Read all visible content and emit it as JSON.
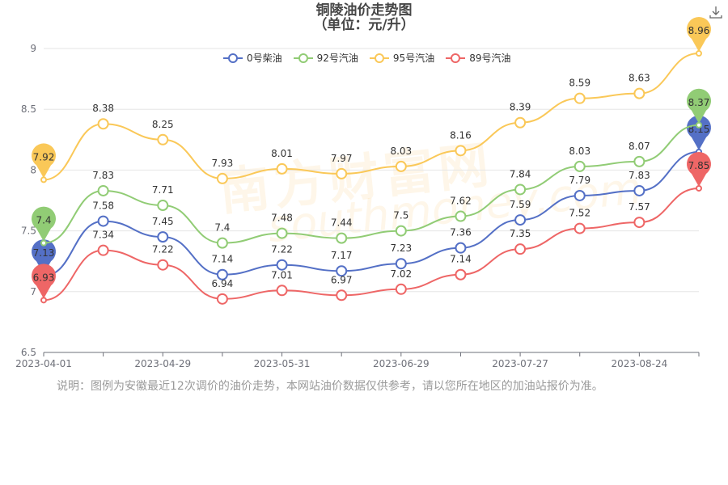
{
  "title": "铜陵油价走势图",
  "subtitle": "（单位：元/升）",
  "note": "说明：图例为安徽最近12次调价的油价走势，本网站油价数据仅供参考，请以您所在地区的加油站报价为准。",
  "watermark": {
    "cn": "南方财富网",
    "en": "southmoney.com"
  },
  "download_icon": "download-icon",
  "chart_data": {
    "type": "line",
    "title": "铜陵油价走势图",
    "subtitle": "（单位：元/升）",
    "xlabel": "",
    "ylabel": "",
    "ylim": [
      6.5,
      9
    ],
    "yticks": [
      6.5,
      7,
      7.5,
      8,
      8.5,
      9
    ],
    "x": [
      "2023-04-01",
      "2023-04-15",
      "2023-04-29",
      "2023-05-17",
      "2023-05-31",
      "2023-06-14",
      "2023-06-29",
      "2023-07-13",
      "2023-07-27",
      "2023-08-10",
      "2023-08-24",
      "2023-09-07"
    ],
    "xtick_labels": [
      "2023-04-01",
      "2023-04-29",
      "2023-05-31",
      "2023-06-29",
      "2023-07-27",
      "2023-08-24"
    ],
    "grid": true,
    "legend_position": "top-center",
    "series": [
      {
        "name": "0号柴油",
        "color": "#5470c6",
        "values": [
          7.13,
          7.58,
          7.45,
          7.14,
          7.22,
          7.17,
          7.23,
          7.36,
          7.59,
          7.79,
          7.83,
          8.15
        ]
      },
      {
        "name": "92号汽油",
        "color": "#91cc75",
        "values": [
          7.4,
          7.83,
          7.71,
          7.4,
          7.48,
          7.44,
          7.5,
          7.62,
          7.84,
          8.03,
          8.07,
          8.37
        ]
      },
      {
        "name": "95号汽油",
        "color": "#fac858",
        "values": [
          7.92,
          8.38,
          8.25,
          7.93,
          8.01,
          7.97,
          8.03,
          8.16,
          8.39,
          8.59,
          8.63,
          8.96
        ]
      },
      {
        "name": "89号汽油",
        "color": "#ee6666",
        "values": [
          6.93,
          7.34,
          7.22,
          6.94,
          7.01,
          6.97,
          7.02,
          7.14,
          7.35,
          7.52,
          7.57,
          7.85
        ]
      }
    ]
  }
}
